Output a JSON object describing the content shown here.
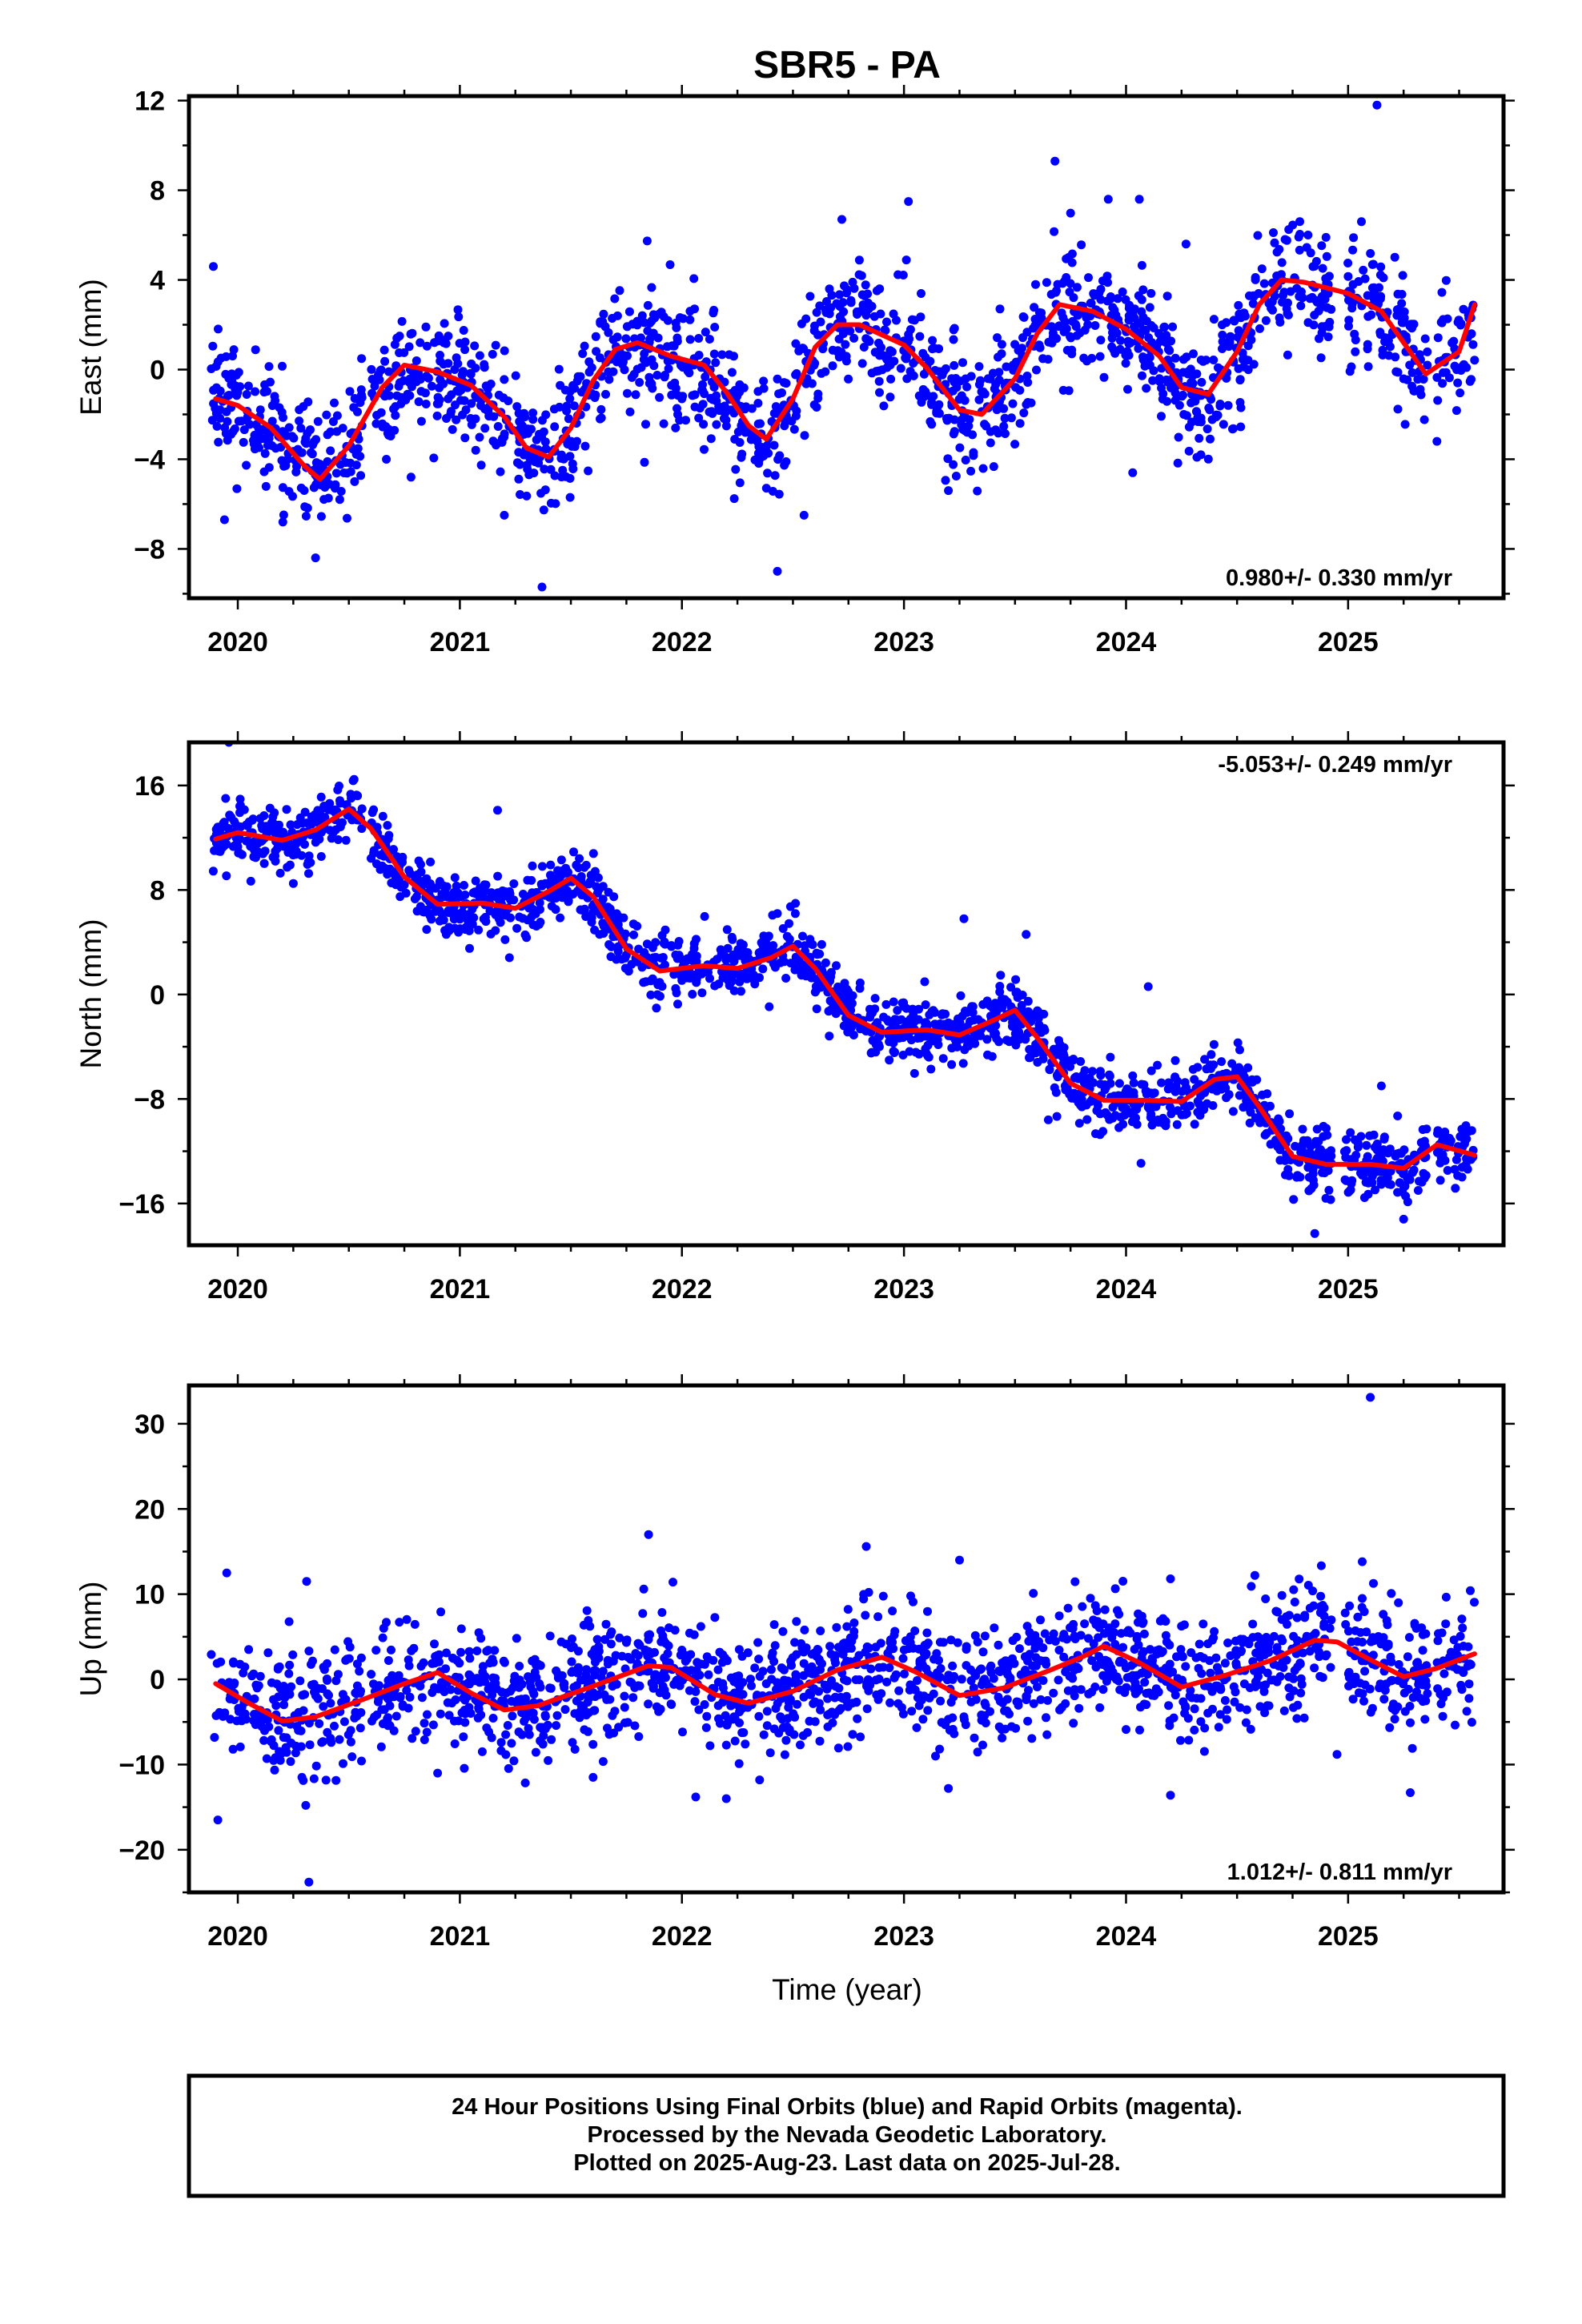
{
  "chart_data": {
    "type": "scatter",
    "title": "SBR5 - PA",
    "xlabel": "Time (year)",
    "x_ticks": [
      "2020",
      "2021",
      "2022",
      "2023",
      "2024",
      "2025"
    ],
    "xlim": [
      2019.78,
      2025.7
    ],
    "panels": [
      {
        "ylabel": "East (mm)",
        "ylim": [
          -10.2,
          12.2
        ],
        "y_ticks": [
          12,
          8,
          4,
          0,
          -4,
          -8
        ],
        "y_tick_labels": [
          "12",
          "8",
          "4",
          "0",
          "−4",
          "−8"
        ],
        "rate_text": "0.980+/- 0.330 mm/yr",
        "rate_position": "bottom-right",
        "fit_series": {
          "x": [
            2019.9,
            2020.0,
            2020.15,
            2020.3,
            2020.37,
            2020.5,
            2020.65,
            2020.75,
            2020.9,
            2021.05,
            2021.2,
            2021.3,
            2021.4,
            2021.5,
            2021.6,
            2021.7,
            2021.8,
            2021.95,
            2022.1,
            2022.2,
            2022.3,
            2022.38,
            2022.5,
            2022.6,
            2022.7,
            2022.8,
            2023.0,
            2023.1,
            2023.25,
            2023.35,
            2023.5,
            2023.6,
            2023.7,
            2023.85,
            2024.0,
            2024.15,
            2024.25,
            2024.37,
            2024.5,
            2024.6,
            2024.7,
            2024.8,
            2025.0,
            2025.15,
            2025.25,
            2025.35,
            2025.5,
            2025.57
          ],
          "y": [
            -1.3,
            -1.6,
            -2.6,
            -4.3,
            -4.9,
            -3.4,
            -0.8,
            0.2,
            -0.1,
            -0.7,
            -2.1,
            -3.5,
            -3.9,
            -2.6,
            -0.5,
            0.9,
            1.2,
            0.6,
            0.2,
            -1.0,
            -2.5,
            -3.1,
            -1.3,
            1.0,
            2.0,
            2.0,
            1.1,
            0.1,
            -1.8,
            -2.0,
            -0.4,
            1.6,
            2.9,
            2.6,
            1.8,
            0.6,
            -0.8,
            -1.1,
            0.8,
            2.9,
            4.0,
            3.9,
            3.4,
            2.6,
            1.2,
            -0.2,
            0.8,
            2.9
          ]
        },
        "scatter": {
          "count": 1750,
          "jitter_sd": 1.35,
          "outliers": [
            [
              2019.89,
              4.6
            ],
            [
              2019.94,
              -6.7
            ],
            [
              2020.35,
              -8.4
            ],
            [
              2020.78,
              -4.8
            ],
            [
              2021.2,
              -6.5
            ],
            [
              2021.37,
              -9.7
            ],
            [
              2022.43,
              -9.0
            ],
            [
              2022.55,
              -6.5
            ],
            [
              2022.72,
              6.7
            ],
            [
              2023.02,
              7.5
            ],
            [
              2023.2,
              -5.4
            ],
            [
              2023.68,
              9.3
            ],
            [
              2023.92,
              7.6
            ],
            [
              2024.03,
              -4.6
            ],
            [
              2024.06,
              7.6
            ],
            [
              2024.27,
              5.6
            ],
            [
              2025.06,
              6.6
            ],
            [
              2025.13,
              11.8
            ],
            [
              2025.4,
              -3.2
            ]
          ]
        }
      },
      {
        "ylabel": "North (mm)",
        "ylim": [
          -19.2,
          19.3
        ],
        "y_ticks": [
          16,
          8,
          0,
          -8,
          -16
        ],
        "y_tick_labels": [
          "16",
          "8",
          "0",
          "−8",
          "−16"
        ],
        "rate_text": "-5.053+/- 0.249 mm/yr",
        "rate_position": "top-right",
        "fit_series": {
          "x": [
            2019.9,
            2020.0,
            2020.2,
            2020.35,
            2020.5,
            2020.6,
            2020.75,
            2020.9,
            2021.1,
            2021.25,
            2021.4,
            2021.5,
            2021.6,
            2021.75,
            2021.9,
            2022.1,
            2022.25,
            2022.4,
            2022.5,
            2022.6,
            2022.75,
            2022.9,
            2023.1,
            2023.25,
            2023.4,
            2023.5,
            2023.6,
            2023.75,
            2023.9,
            2024.1,
            2024.25,
            2024.4,
            2024.5,
            2024.6,
            2024.75,
            2024.9,
            2025.1,
            2025.25,
            2025.4,
            2025.57
          ],
          "y": [
            11.9,
            12.4,
            11.8,
            12.6,
            14.2,
            12.7,
            9.0,
            6.9,
            7.0,
            6.6,
            7.9,
            8.9,
            7.5,
            3.5,
            1.8,
            2.2,
            2.0,
            2.8,
            3.7,
            2.0,
            -1.6,
            -2.9,
            -2.7,
            -3.1,
            -2.0,
            -1.2,
            -3.3,
            -6.8,
            -8.1,
            -8.1,
            -8.2,
            -6.5,
            -6.3,
            -8.6,
            -12.4,
            -13.0,
            -13.0,
            -13.3,
            -11.5,
            -12.3
          ]
        },
        "scatter": {
          "count": 1750,
          "jitter_sd": 1.25,
          "outliers": [
            [
              2019.96,
              19.3
            ],
            [
              2020.25,
              8.5
            ],
            [
              2021.17,
              14.1
            ],
            [
              2022.43,
              6.2
            ],
            [
              2023.27,
              5.8
            ],
            [
              2023.55,
              4.6
            ],
            [
              2023.65,
              -9.6
            ],
            [
              2024.1,
              0.6
            ],
            [
              2024.85,
              -18.3
            ],
            [
              2025.15,
              -7.0
            ],
            [
              2025.25,
              -17.2
            ]
          ]
        }
      },
      {
        "ylabel": "Up (mm)",
        "ylim": [
          -25,
          34.5
        ],
        "y_ticks": [
          30,
          20,
          10,
          0,
          -10,
          -20
        ],
        "y_tick_labels": [
          "30",
          "20",
          "10",
          "0",
          "−10",
          "−20"
        ],
        "rate_text": "1.012+/- 0.811 mm/yr",
        "rate_position": "bottom-right",
        "fit_series": {
          "x": [
            2019.9,
            2020.05,
            2020.2,
            2020.35,
            2020.55,
            2020.75,
            2020.9,
            2021.05,
            2021.2,
            2021.35,
            2021.6,
            2021.85,
            2021.95,
            2022.15,
            2022.3,
            2022.5,
            2022.7,
            2022.9,
            2023.05,
            2023.25,
            2023.45,
            2023.65,
            2023.8,
            2023.9,
            2024.05,
            2024.25,
            2024.45,
            2024.65,
            2024.85,
            2024.95,
            2025.1,
            2025.25,
            2025.4,
            2025.57
          ],
          "y": [
            -0.5,
            -2.8,
            -4.9,
            -4.4,
            -2.5,
            -0.5,
            0.8,
            -1.6,
            -3.6,
            -3.1,
            -0.8,
            1.6,
            1.4,
            -1.8,
            -2.8,
            -1.4,
            1.1,
            2.6,
            0.9,
            -1.9,
            -1.0,
            1.0,
            2.6,
            3.9,
            2.1,
            -0.9,
            0.5,
            2.2,
            4.6,
            4.4,
            2.3,
            0.3,
            1.3,
            3.0
          ]
        },
        "scatter": {
          "count": 1750,
          "jitter_sd": 3.6,
          "outliers": [
            [
              2019.91,
              -16.5
            ],
            [
              2019.95,
              12.5
            ],
            [
              2020.32,
              -23.8
            ],
            [
              2020.31,
              11.5
            ],
            [
              2020.9,
              -11.0
            ],
            [
              2021.6,
              -11.5
            ],
            [
              2021.85,
              17.0
            ],
            [
              2022.2,
              -14.0
            ],
            [
              2022.35,
              -11.8
            ],
            [
              2022.83,
              15.6
            ],
            [
              2023.25,
              14.0
            ],
            [
              2023.2,
              -12.8
            ],
            [
              2024.2,
              11.8
            ],
            [
              2024.2,
              -13.6
            ],
            [
              2024.58,
              12.2
            ],
            [
              2024.95,
              -8.8
            ],
            [
              2025.1,
              33.1
            ],
            [
              2025.28,
              -13.3
            ]
          ]
        }
      }
    ],
    "colors": {
      "final_orbits": "#0000ff",
      "fit_line": "#ff0000"
    }
  },
  "footer": {
    "line1": "24 Hour Positions Using Final Orbits (blue) and Rapid Orbits (magenta).",
    "line2": "Processed by the Nevada Geodetic Laboratory.",
    "line3": "Plotted on 2025-Aug-23. Last data on 2025-Jul-28."
  }
}
